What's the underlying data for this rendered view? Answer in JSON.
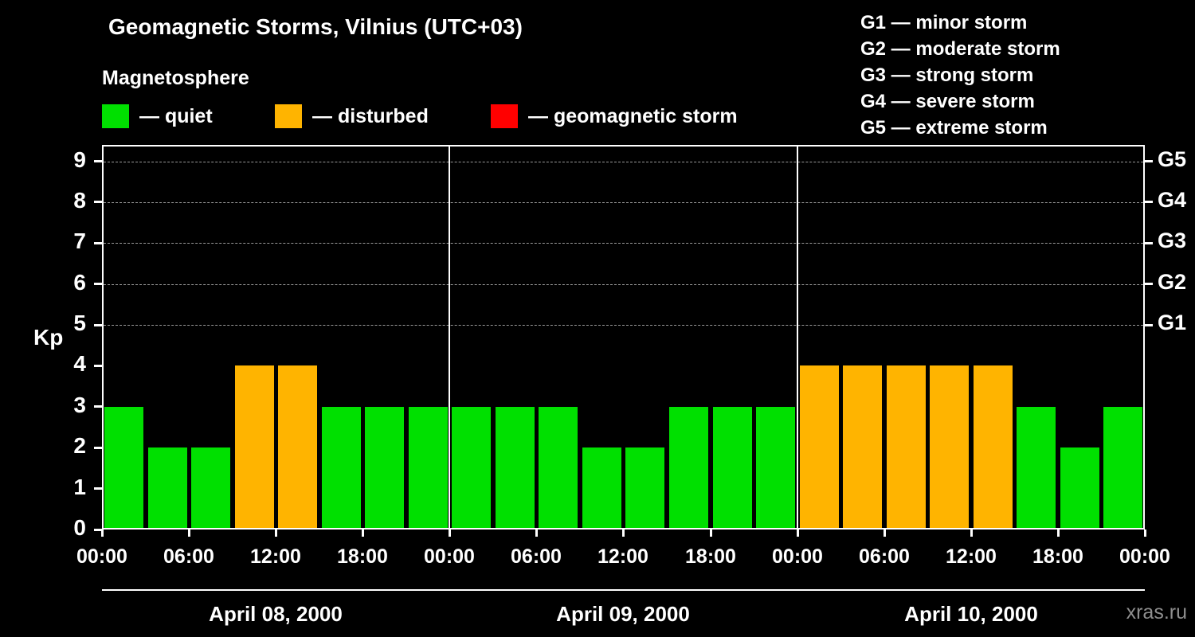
{
  "title": "Geomagnetic Storms, Vilnius (UTC+03)",
  "subtitle": "Magnetosphere",
  "legend": {
    "items": [
      {
        "name": "quiet",
        "label": "— quiet",
        "color": "#00E000"
      },
      {
        "name": "disturbed",
        "label": "— disturbed",
        "color": "#FFB400"
      },
      {
        "name": "geomagnetic-storm",
        "label": "— geomagnetic storm",
        "color": "#FF0000"
      }
    ]
  },
  "storm_scale": [
    {
      "label": "G1 — minor storm"
    },
    {
      "label": "G2 — moderate storm"
    },
    {
      "label": "G3 — strong storm"
    },
    {
      "label": "G4 — severe storm"
    },
    {
      "label": "G5 — extreme storm"
    }
  ],
  "watermark": "xras.ru",
  "chart_data": {
    "type": "bar",
    "title": "Geomagnetic Storms, Vilnius (UTC+03)",
    "ylabel": "Kp",
    "ylim": [
      0,
      9.4
    ],
    "yticks": [
      0,
      1,
      2,
      3,
      4,
      5,
      6,
      7,
      8,
      9
    ],
    "gridlines": [
      5,
      6,
      7,
      8,
      9
    ],
    "right_axis": [
      {
        "label": "G1",
        "value": 5
      },
      {
        "label": "G2",
        "value": 6
      },
      {
        "label": "G3",
        "value": 7
      },
      {
        "label": "G4",
        "value": 8
      },
      {
        "label": "G5",
        "value": 9
      }
    ],
    "x_tick_labels": [
      "00:00",
      "06:00",
      "12:00",
      "18:00"
    ],
    "x_final_label": "00:00",
    "bar_interval_hours": 3,
    "grid": "dashed horizontal lines at G levels",
    "legend_position": "top",
    "days": [
      {
        "date": "April 08, 2000",
        "values": [
          3,
          2,
          2,
          4,
          4,
          3,
          3,
          3
        ]
      },
      {
        "date": "April 09, 2000",
        "values": [
          3,
          3,
          3,
          2,
          2,
          3,
          3,
          3
        ]
      },
      {
        "date": "April 10, 2000",
        "values": [
          4,
          4,
          4,
          4,
          4,
          3,
          2,
          3
        ]
      }
    ],
    "color_rules": {
      "quiet_max": 3,
      "disturbed_max": 4
    },
    "colors": {
      "quiet": "#00E000",
      "disturbed": "#FFB400",
      "storm": "#FF0000"
    }
  }
}
